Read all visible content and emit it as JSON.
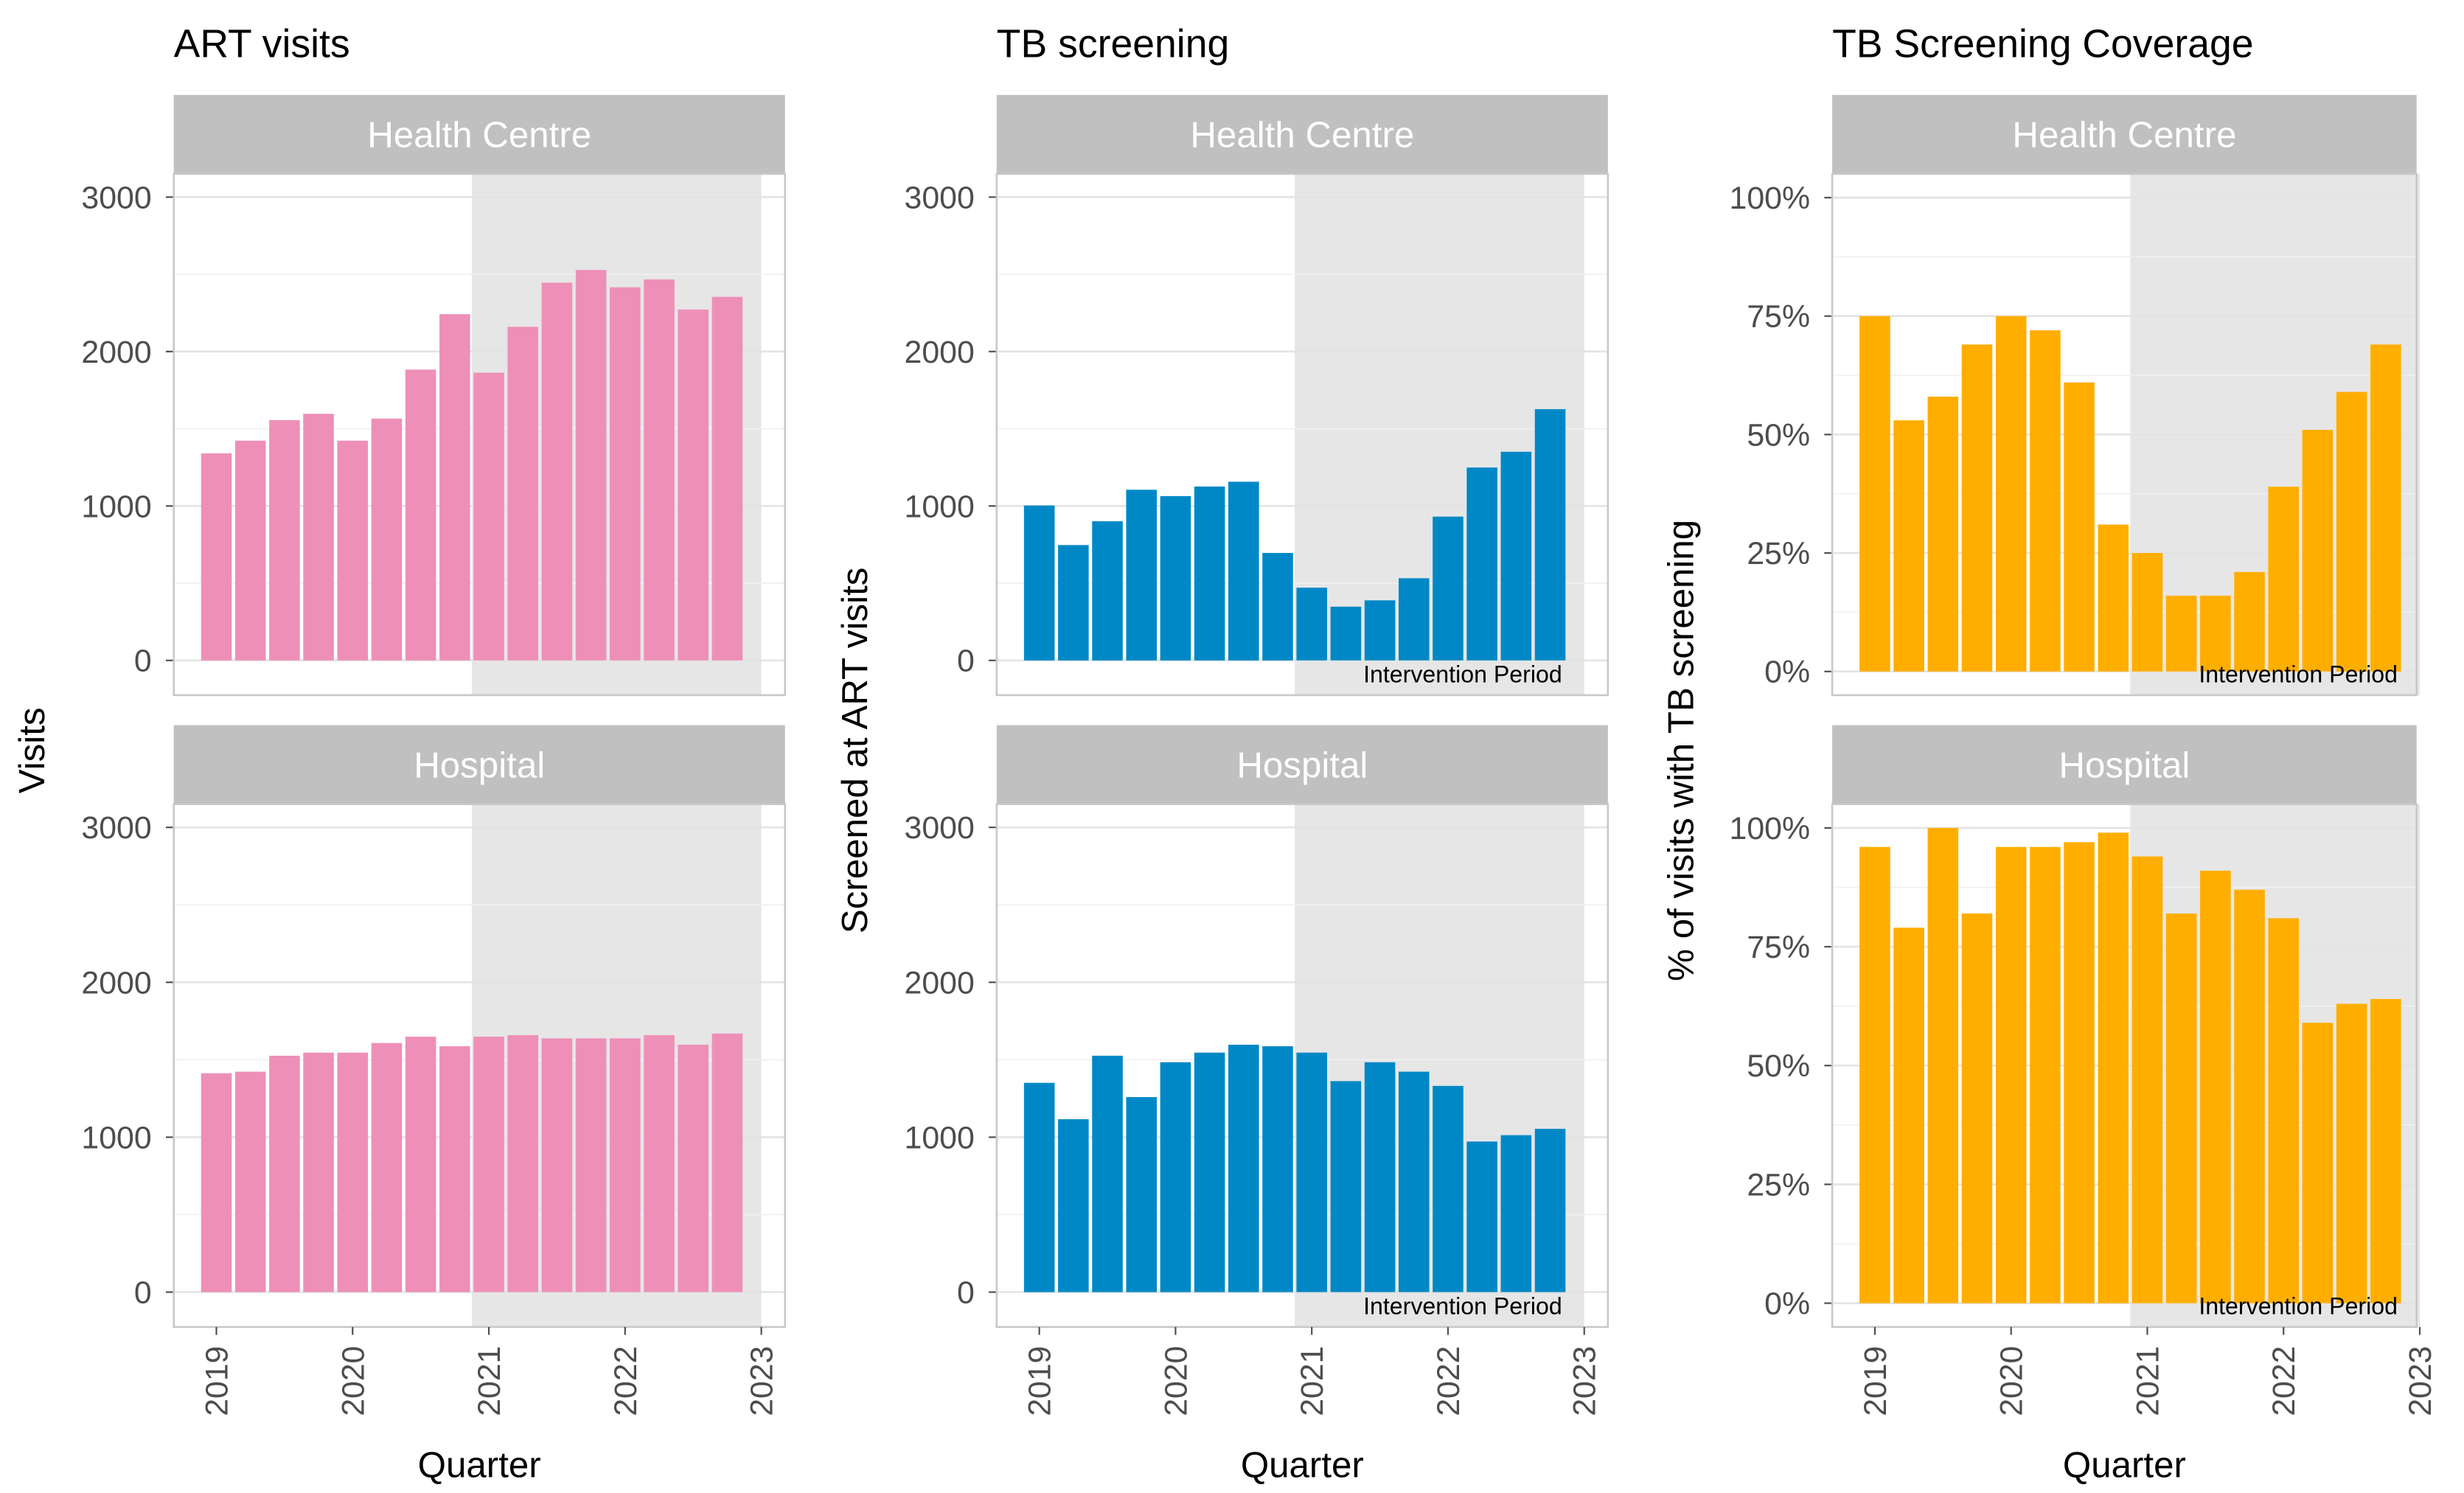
{
  "chart_data": [
    {
      "type": "bar",
      "title": "ART visits",
      "ylabel": "Visits",
      "xlabel": "Quarter",
      "color": "#EE8FB8",
      "ylim": [
        -225,
        3150
      ],
      "yticks": [
        0,
        1000,
        2000,
        3000
      ],
      "ytick_labels": [
        "0",
        "1000",
        "2000",
        "3000"
      ],
      "facets": [
        {
          "label": "Health Centre",
          "values": [
            1341,
            1423,
            1556,
            1597,
            1423,
            1566,
            1883,
            2242,
            1863,
            2160,
            2446,
            2528,
            2416,
            2467,
            2272,
            2354
          ]
        },
        {
          "label": "Hospital",
          "values": [
            1413,
            1423,
            1526,
            1546,
            1546,
            1608,
            1649,
            1587,
            1649,
            1659,
            1638,
            1638,
            1638,
            1659,
            1597,
            1669
          ]
        }
      ]
    },
    {
      "type": "bar",
      "title": "TB screening",
      "ylabel": "Screened at ART visits",
      "xlabel": "Quarter",
      "color": "#0088C6",
      "ylim": [
        -225,
        3150
      ],
      "yticks": [
        0,
        1000,
        2000,
        3000
      ],
      "ytick_labels": [
        "0",
        "1000",
        "2000",
        "3000"
      ],
      "annotation": "Intervention Period",
      "facets": [
        {
          "label": "Health Centre",
          "values": [
            1003,
            747,
            901,
            1105,
            1064,
            1126,
            1157,
            696,
            471,
            348,
            389,
            532,
            931,
            1249,
            1351,
            1627
          ]
        },
        {
          "label": "Hospital",
          "values": [
            1351,
            1116,
            1526,
            1259,
            1484,
            1546,
            1597,
            1587,
            1546,
            1362,
            1484,
            1423,
            1331,
            972,
            1013,
            1054
          ]
        }
      ]
    },
    {
      "type": "bar",
      "title": "TB Screening Coverage",
      "ylabel": "% of visits with TB screening",
      "xlabel": "Quarter",
      "color": "#FFAE00",
      "ylim": [
        -5,
        105
      ],
      "yticks": [
        0,
        25,
        50,
        75,
        100
      ],
      "ytick_labels": [
        "0%",
        "25%",
        "50%",
        "75%",
        "100%"
      ],
      "annotation": "Intervention Period",
      "facets": [
        {
          "label": "Health Centre",
          "values": [
            75,
            53,
            58,
            69,
            75,
            72,
            61,
            31,
            25,
            16,
            16,
            21,
            39,
            51,
            59,
            69
          ]
        },
        {
          "label": "Hospital",
          "values": [
            96,
            79,
            100,
            82,
            96,
            96,
            97,
            99,
            94,
            82,
            91,
            87,
            81,
            59,
            63,
            64
          ]
        }
      ]
    }
  ],
  "x_quarters_start": 2019,
  "xticks": [
    "2019",
    "2020",
    "2021",
    "2022",
    "2023"
  ],
  "intervention_period": [
    2020.875,
    2023
  ],
  "shade_color": "#E6E6E6"
}
